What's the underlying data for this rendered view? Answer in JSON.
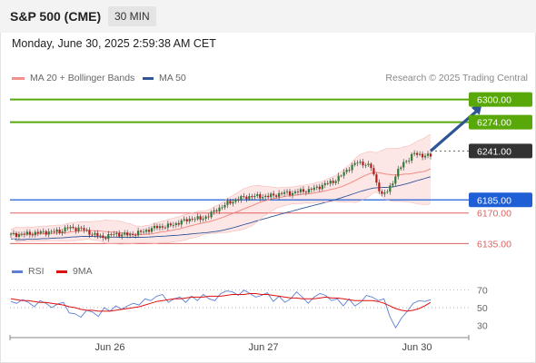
{
  "header": {
    "instrument": "S&P 500 (CME)",
    "timeframe": "30 MIN"
  },
  "timestamp": "Monday, June 30, 2025 2:59:38 AM CET",
  "legend": {
    "ma_bollinger": "MA 20 + Bollinger Bands",
    "ma50": "MA 50",
    "ma_bollinger_color": "#f4908b",
    "ma50_color": "#2f5597"
  },
  "credit": "Research © 2025 Trading Central",
  "rsi_legend": {
    "rsi": "RSI",
    "ma9": "9MA",
    "rsi_color": "#5b7fd4",
    "ma9_color": "#e01010"
  },
  "colors": {
    "up_candle": "#2e7d32",
    "down_candle": "#b71c1c",
    "target_green": "#58a80a",
    "pivot_blue": "#1f5fd6",
    "support_red": "#e06060",
    "arrow": "#2f5597",
    "current_price_bg": "#333333"
  },
  "chart_data": [
    {
      "type": "candlestick",
      "x_labels": [
        "Jun 26",
        "Jun 27",
        "Jun 30"
      ],
      "ylim": [
        6125,
        6310
      ],
      "levels": [
        {
          "value": 6300.0,
          "label": "6300.00",
          "kind": "resistance"
        },
        {
          "value": 6274.0,
          "label": "6274.00",
          "kind": "resistance"
        },
        {
          "value": 6241.0,
          "label": "6241.00",
          "kind": "current"
        },
        {
          "value": 6185.0,
          "label": "6185.00",
          "kind": "pivot"
        },
        {
          "value": 6170.0,
          "label": "6170.00",
          "kind": "support"
        },
        {
          "value": 6135.0,
          "label": "6135.00",
          "kind": "support"
        }
      ],
      "close_path": [
        [
          0,
          6145
        ],
        [
          6,
          6146
        ],
        [
          12,
          6148
        ],
        [
          18,
          6149
        ],
        [
          21,
          6153
        ],
        [
          26,
          6152
        ],
        [
          30,
          6146
        ],
        [
          34,
          6142
        ],
        [
          38,
          6146
        ],
        [
          44,
          6145
        ],
        [
          48,
          6148
        ],
        [
          54,
          6154
        ],
        [
          58,
          6155
        ],
        [
          61,
          6158
        ],
        [
          64,
          6161
        ],
        [
          67,
          6164
        ],
        [
          70,
          6163
        ],
        [
          73,
          6167
        ],
        [
          76,
          6174
        ],
        [
          80,
          6181
        ],
        [
          83,
          6185
        ],
        [
          86,
          6188
        ],
        [
          89,
          6189
        ],
        [
          92,
          6189
        ],
        [
          95,
          6189
        ],
        [
          98,
          6191
        ],
        [
          101,
          6193
        ],
        [
          104,
          6193
        ],
        [
          107,
          6195
        ],
        [
          110,
          6196
        ],
        [
          113,
          6199
        ],
        [
          116,
          6203
        ],
        [
          119,
          6206
        ],
        [
          122,
          6213
        ],
        [
          125,
          6222
        ],
        [
          128,
          6228
        ],
        [
          131,
          6226
        ],
        [
          133,
          6222
        ],
        [
          135,
          6205
        ],
        [
          137,
          6190
        ],
        [
          139,
          6195
        ],
        [
          141,
          6206
        ],
        [
          143,
          6218
        ],
        [
          145,
          6228
        ],
        [
          147,
          6232
        ],
        [
          149,
          6238
        ],
        [
          151,
          6237
        ],
        [
          153,
          6235
        ],
        [
          155,
          6236
        ]
      ],
      "forecast_arrow": {
        "from": [
          155,
          6241
        ],
        "to": [
          168,
          6300
        ]
      }
    },
    {
      "type": "line",
      "name": "RSI",
      "ylim": [
        20,
        80
      ],
      "ticks": [
        70,
        50,
        30
      ],
      "series": [
        {
          "name": "RSI",
          "values": [
            57,
            55,
            59,
            56,
            51,
            58,
            55,
            50,
            54,
            56,
            44,
            43,
            39,
            47,
            45,
            40,
            50,
            46,
            52,
            48,
            52,
            55,
            53,
            60,
            58,
            63,
            65,
            56,
            60,
            62,
            56,
            63,
            58,
            65,
            60,
            58,
            66,
            69,
            68,
            64,
            70,
            66,
            62,
            64,
            67,
            57,
            63,
            56,
            60,
            68,
            62,
            55,
            62,
            66,
            64,
            58,
            60,
            52,
            60,
            52,
            56,
            64,
            62,
            58,
            60,
            40,
            27,
            38,
            46,
            55,
            58,
            57,
            59
          ]
        },
        {
          "name": "9MA",
          "values": [
            60,
            59,
            58,
            58,
            57,
            56,
            56,
            55,
            54,
            53,
            51,
            50,
            48,
            47,
            47,
            46,
            46,
            46,
            47,
            48,
            49,
            50,
            51,
            53,
            55,
            57,
            58,
            59,
            60,
            60,
            61,
            62,
            62,
            62,
            63,
            63,
            63,
            64,
            65,
            65,
            65,
            66,
            66,
            65,
            65,
            64,
            63,
            62,
            61,
            61,
            60,
            60,
            60,
            61,
            62,
            61,
            61,
            60,
            59,
            58,
            58,
            58,
            58,
            57,
            55,
            52,
            49,
            47,
            46,
            47,
            49,
            52,
            56
          ]
        }
      ]
    }
  ]
}
